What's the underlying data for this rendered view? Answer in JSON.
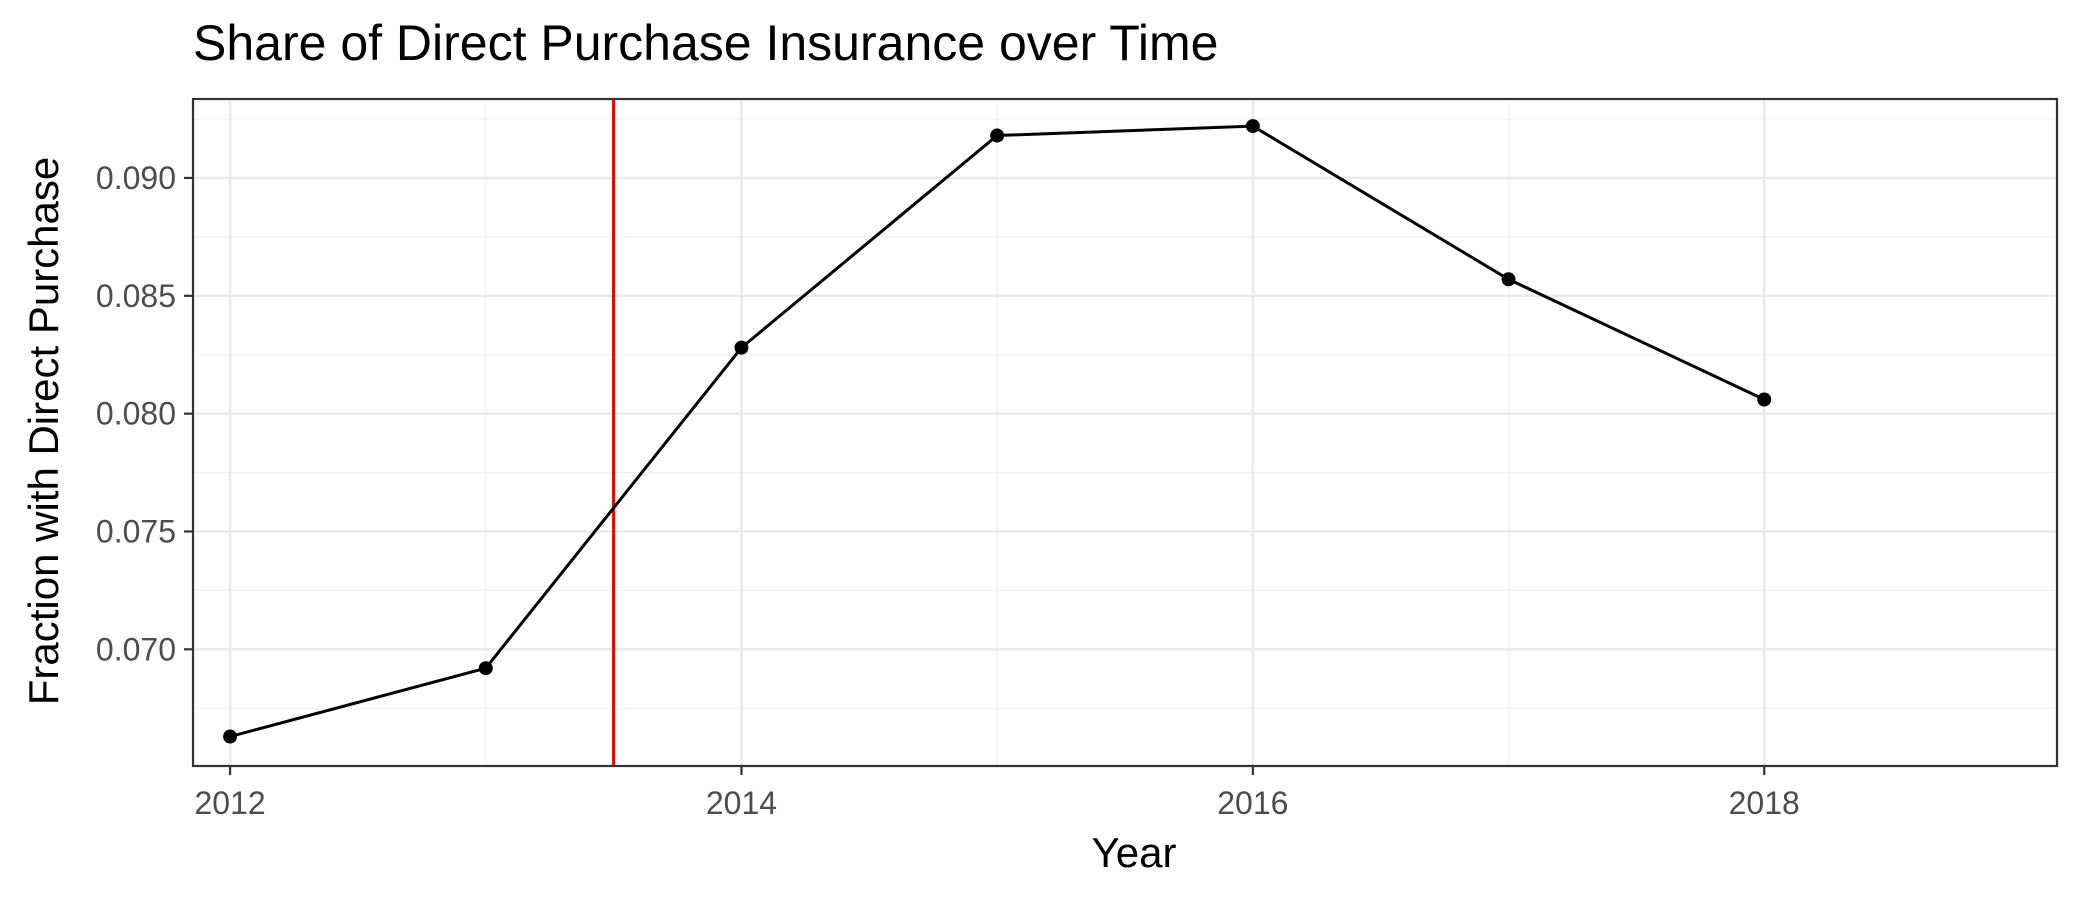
{
  "chart_data": {
    "type": "line",
    "title": "Share of Direct Purchase Insurance over Time",
    "xlabel": "Year",
    "ylabel": "Fraction with Direct Purchase",
    "x": [
      2012,
      2013,
      2014,
      2015,
      2016,
      2017,
      2018
    ],
    "series": [
      {
        "values": [
          0.0663,
          0.0692,
          0.0828,
          0.0918,
          0.0922,
          0.0857,
          0.0806
        ]
      }
    ],
    "xlim": [
      2011.855,
      2019.145
    ],
    "ylim": [
      0.06505,
      0.09335
    ],
    "x_ticks": [
      2012,
      2014,
      2016,
      2018
    ],
    "x_tick_labels": [
      "2012",
      "2014",
      "2016",
      "2018"
    ],
    "y_ticks": [
      0.07,
      0.075,
      0.08,
      0.085,
      0.09
    ],
    "y_tick_labels": [
      "0.070",
      "0.075",
      "0.080",
      "0.085",
      "0.090"
    ],
    "x_minor_ticks": [
      2013,
      2015,
      2017
    ],
    "y_minor_ticks": [
      0.0675,
      0.0725,
      0.0775,
      0.0825,
      0.0875,
      0.0925
    ],
    "reference_lines": [
      {
        "orientation": "vertical",
        "x": 2013.5,
        "color": "#ff0000"
      }
    ],
    "grid": true,
    "legend": "none",
    "series_color": "#000000"
  }
}
